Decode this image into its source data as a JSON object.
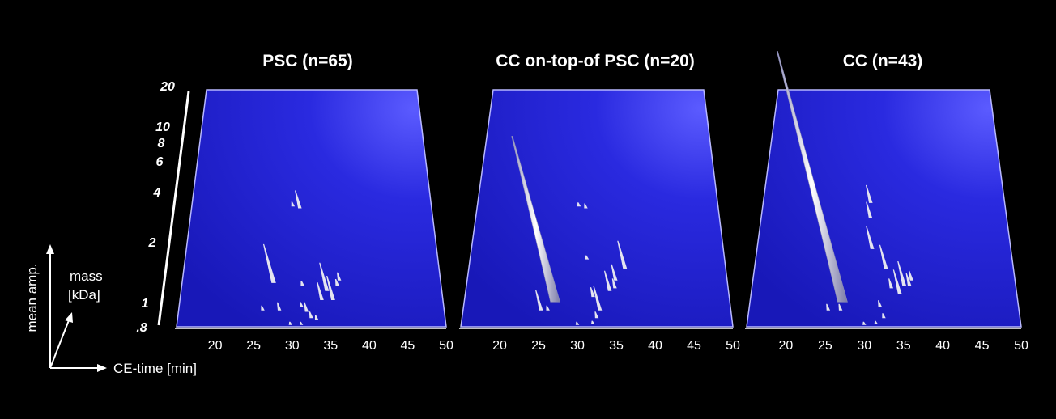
{
  "chart_data": [
    {
      "type": "3d-surface",
      "title": "PSC (n=65)",
      "x_axis": {
        "ticks": [
          20,
          25,
          30,
          35,
          40,
          45,
          50
        ],
        "range": [
          15,
          50
        ]
      },
      "peaks": [
        {
          "t": 29.8,
          "m": 4.1,
          "h": 6
        },
        {
          "t": 30.8,
          "m": 4.0,
          "h": 22
        },
        {
          "t": 27.4,
          "m": 1.45,
          "h": 48
        },
        {
          "t": 28.3,
          "m": 1.0,
          "h": 10
        },
        {
          "t": 31.3,
          "m": 1.4,
          "h": 6
        },
        {
          "t": 31.2,
          "m": 1.05,
          "h": 6
        },
        {
          "t": 31.9,
          "m": 0.98,
          "h": 12
        },
        {
          "t": 33.9,
          "m": 1.15,
          "h": 22
        },
        {
          "t": 34.6,
          "m": 1.3,
          "h": 35
        },
        {
          "t": 35.4,
          "m": 1.15,
          "h": 30
        },
        {
          "t": 36.3,
          "m": 1.5,
          "h": 10
        },
        {
          "t": 36.0,
          "m": 1.4,
          "h": 8
        },
        {
          "t": 32.5,
          "m": 0.9,
          "h": 8
        },
        {
          "t": 33.2,
          "m": 0.88,
          "h": 6
        },
        {
          "t": 29.8,
          "m": 0.82,
          "h": 4
        },
        {
          "t": 31.2,
          "m": 0.82,
          "h": 4
        },
        {
          "t": 26.1,
          "m": 1.0,
          "h": 6
        }
      ]
    },
    {
      "type": "3d-surface",
      "title": "CC on-top-of PSC (n=20)",
      "x_axis": {
        "ticks": [
          20,
          25,
          30,
          35,
          40,
          45,
          50
        ],
        "range": [
          15,
          50
        ]
      },
      "peaks": [
        {
          "t": 27.0,
          "m": 1.12,
          "h": 205
        },
        {
          "t": 25.2,
          "m": 1.0,
          "h": 25
        },
        {
          "t": 26.1,
          "m": 1.0,
          "h": 6
        },
        {
          "t": 29.8,
          "m": 4.1,
          "h": 5
        },
        {
          "t": 30.8,
          "m": 4.0,
          "h": 6
        },
        {
          "t": 31.1,
          "m": 2.0,
          "h": 5
        },
        {
          "t": 32.0,
          "m": 1.2,
          "h": 12
        },
        {
          "t": 32.9,
          "m": 1.0,
          "h": 30
        },
        {
          "t": 34.2,
          "m": 1.3,
          "h": 25
        },
        {
          "t": 35.0,
          "m": 1.5,
          "h": 20
        },
        {
          "t": 36.3,
          "m": 1.75,
          "h": 35
        },
        {
          "t": 34.9,
          "m": 1.35,
          "h": 12
        },
        {
          "t": 32.5,
          "m": 0.9,
          "h": 8
        },
        {
          "t": 30.0,
          "m": 0.82,
          "h": 4
        },
        {
          "t": 32.0,
          "m": 0.83,
          "h": 4
        }
      ]
    },
    {
      "type": "3d-surface",
      "title": "CC (n=43)",
      "x_axis": {
        "ticks": [
          20,
          25,
          30,
          35,
          40,
          45,
          50
        ],
        "range": [
          15,
          50
        ]
      },
      "peaks": [
        {
          "t": 27.1,
          "m": 1.12,
          "h": 310
        },
        {
          "t": 26.9,
          "m": 1.0,
          "h": 8
        },
        {
          "t": 25.3,
          "m": 1.0,
          "h": 8
        },
        {
          "t": 30.6,
          "m": 4.3,
          "h": 22
        },
        {
          "t": 30.6,
          "m": 3.5,
          "h": 20
        },
        {
          "t": 30.9,
          "m": 2.3,
          "h": 28
        },
        {
          "t": 32.8,
          "m": 1.75,
          "h": 30
        },
        {
          "t": 33.5,
          "m": 1.35,
          "h": 12
        },
        {
          "t": 34.6,
          "m": 1.25,
          "h": 30
        },
        {
          "t": 35.2,
          "m": 1.4,
          "h": 30
        },
        {
          "t": 35.9,
          "m": 1.4,
          "h": 15
        },
        {
          "t": 36.2,
          "m": 1.5,
          "h": 12
        },
        {
          "t": 32.0,
          "m": 1.05,
          "h": 8
        },
        {
          "t": 32.5,
          "m": 0.9,
          "h": 6
        },
        {
          "t": 30.0,
          "m": 0.82,
          "h": 4
        },
        {
          "t": 31.5,
          "m": 0.83,
          "h": 4
        }
      ]
    }
  ],
  "mass_axis": {
    "ticks": [
      "20",
      "10",
      "8",
      "6",
      "4",
      "2",
      "1",
      ".8"
    ]
  },
  "legend": {
    "y_label": "mean amp.",
    "z_label_line1": "mass",
    "z_label_line2": "[kDa]",
    "x_label": "CE-time [min]"
  },
  "colors": {
    "background": "#000000",
    "plane": "#1a1ad0",
    "peak": "#d8d8e8",
    "text": "#ffffff"
  }
}
